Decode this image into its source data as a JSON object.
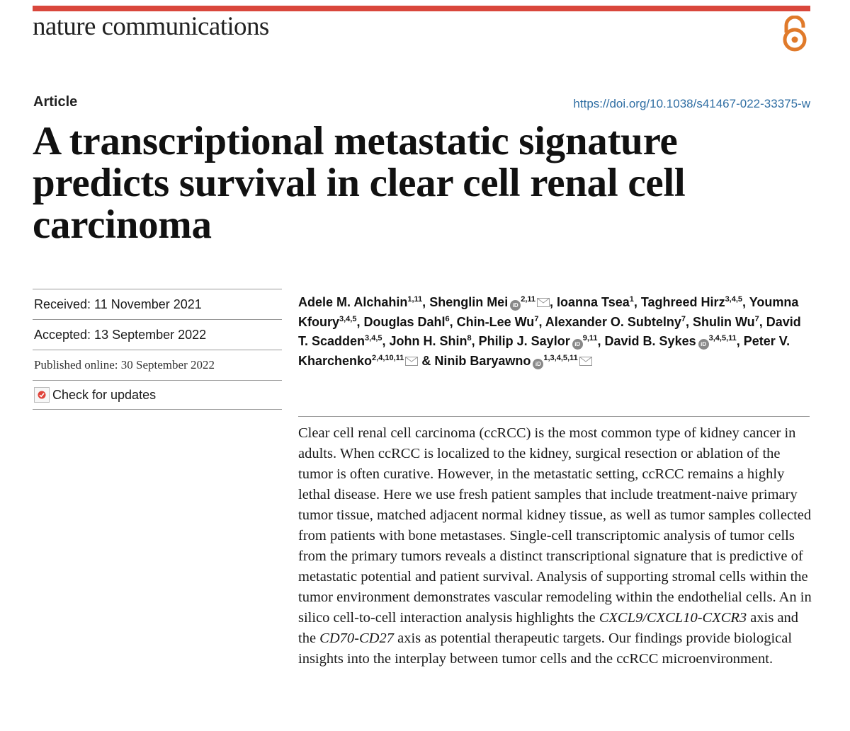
{
  "journal": {
    "name": "nature communications",
    "open_access_icon": "open-access-icon",
    "accent_color": "#d9473c"
  },
  "article": {
    "type": "Article",
    "doi": "https://doi.org/10.1038/s41467-022-33375-w",
    "title_lines": [
      "A transcriptional metastatic signature",
      "predicts survival in clear cell renal cell",
      "carcinoma"
    ]
  },
  "dates": {
    "received": "Received: 11 November 2021",
    "accepted": "Accepted: 13 September 2022",
    "published": "Published online: 30 September 2022",
    "check_updates": "Check for updates"
  },
  "authors": [
    {
      "name": "Adele M. Alchahin",
      "aff": "1,11",
      "orcid": false,
      "mail": false,
      "sep": ", "
    },
    {
      "name": "Shenglin Mei",
      "aff": "2,11",
      "orcid": true,
      "mail": true,
      "sep": ", "
    },
    {
      "name": "Ioanna Tsea",
      "aff": "1",
      "orcid": false,
      "mail": false,
      "sep": ", "
    },
    {
      "name": "Taghreed Hirz",
      "aff": "3,4,5",
      "orcid": false,
      "mail": false,
      "sep": ", "
    },
    {
      "name": "Youmna Kfoury",
      "aff": "3,4,5",
      "orcid": false,
      "mail": false,
      "sep": ", "
    },
    {
      "name": "Douglas Dahl",
      "aff": "6",
      "orcid": false,
      "mail": false,
      "sep": ", "
    },
    {
      "name": "Chin-Lee Wu",
      "aff": "7",
      "orcid": false,
      "mail": false,
      "sep": ", "
    },
    {
      "name": "Alexander O. Subtelny",
      "aff": "7",
      "orcid": false,
      "mail": false,
      "sep": ", "
    },
    {
      "name": "Shulin Wu",
      "aff": "7",
      "orcid": false,
      "mail": false,
      "sep": ", "
    },
    {
      "name": "David T. Scadden",
      "aff": "3,4,5",
      "orcid": false,
      "mail": false,
      "sep": ", "
    },
    {
      "name": "John H. Shin",
      "aff": "8",
      "orcid": false,
      "mail": false,
      "sep": ", "
    },
    {
      "name": "Philip J. Saylor",
      "aff": "9,11",
      "orcid": true,
      "mail": false,
      "sep": ", "
    },
    {
      "name": "David B. Sykes",
      "aff": "3,4,5,11",
      "orcid": true,
      "mail": false,
      "sep": ", "
    },
    {
      "name": "Peter V. Kharchenko",
      "aff": "2,4,10,11",
      "orcid": false,
      "mail": true,
      "sep": " & "
    },
    {
      "name": "Ninib Baryawno",
      "aff": "1,3,4,5,11",
      "orcid": true,
      "mail": true,
      "sep": ""
    }
  ],
  "abstract": {
    "p1": "Clear cell renal cell carcinoma (ccRCC) is the most common type of kidney cancer in adults. When ccRCC is localized to the kidney, surgical resection or ablation of the tumor is often curative. However, in the metastatic setting, ccRCC remains a highly lethal disease. Here we use fresh patient samples that include treatment-naive primary tumor tissue, matched adjacent normal kidney tissue, as well as tumor samples collected from patients with bone metastases. Single-cell transcriptomic analysis of tumor cells from the primary tumors reveals a distinct transcriptional signature that is predictive of metastatic potential and patient survival. Analysis of supporting stromal cells within the tumor environment demonstrates vascular remodeling within the endothelial cells. An in silico cell-to-cell interaction analysis highlights the ",
    "gene1": "CXCL9/CXCL10-CXCR3",
    "p2": " axis and the ",
    "gene2": "CD70-CD27",
    "p3": " axis as potential therapeutic targets. Our findings provide biological insights into the interplay between tumor cells and the ccRCC microenvironment."
  }
}
